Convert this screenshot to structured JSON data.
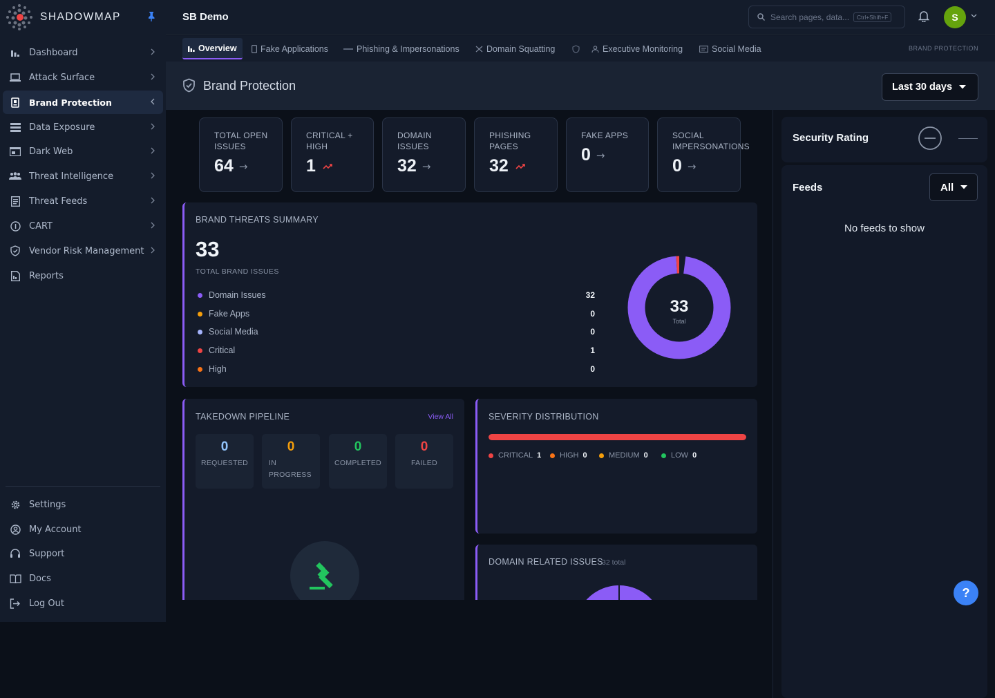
{
  "app": {
    "name": "SHADOWMAP",
    "page_header": "SB Demo"
  },
  "sidebar": {
    "items": [
      {
        "label": "Dashboard",
        "icon": "bar-chart-icon"
      },
      {
        "label": "Attack Surface",
        "icon": "laptop-icon"
      },
      {
        "label": "Brand Protection",
        "icon": "badge-icon",
        "active": true
      },
      {
        "label": "Data Exposure",
        "icon": "database-icon"
      },
      {
        "label": "Dark Web",
        "icon": "browser-icon"
      },
      {
        "label": "Threat Intelligence",
        "icon": "people-icon"
      },
      {
        "label": "Threat Feeds",
        "icon": "document-icon"
      },
      {
        "label": "CART",
        "icon": "info-icon"
      },
      {
        "label": "Vendor Risk Management",
        "icon": "shield-icon"
      },
      {
        "label": "Reports",
        "icon": "report-icon"
      }
    ],
    "bottom": [
      {
        "label": "Settings",
        "icon": "gear-icon"
      },
      {
        "label": "My Account",
        "icon": "user-circle-icon"
      },
      {
        "label": "Support",
        "icon": "headset-icon"
      },
      {
        "label": "Docs",
        "icon": "book-icon"
      },
      {
        "label": "Log Out",
        "icon": "logout-icon"
      }
    ]
  },
  "header": {
    "search_placeholder": "Search pages, data...",
    "shortcut": "Ctrl+Shift+F",
    "avatar_initial": "S"
  },
  "tabs": {
    "items": [
      {
        "label": "Overview",
        "active": true
      },
      {
        "label": "Fake Applications"
      },
      {
        "label": "Phishing & Impersonations"
      },
      {
        "label": "Domain Squatting"
      },
      {
        "label": ""
      },
      {
        "label": "Executive Monitoring"
      },
      {
        "label": "Social Media"
      }
    ],
    "section_label": "BRAND PROTECTION"
  },
  "title_row": {
    "title": "Brand Protection",
    "range": "Last 30 days"
  },
  "stats": [
    {
      "label": "TOTAL OPEN ISSUES",
      "value": "64",
      "trend": "→"
    },
    {
      "label": "CRITICAL + HIGH",
      "value": "1",
      "trend": "up"
    },
    {
      "label": "DOMAIN ISSUES",
      "value": "32",
      "trend": "→"
    },
    {
      "label": "PHISHING PAGES",
      "value": "32",
      "trend": "up"
    },
    {
      "label": "FAKE APPS",
      "value": "0",
      "trend": "→"
    },
    {
      "label": "SOCIAL IMPERSONATIONS",
      "value": "0",
      "trend": "→"
    }
  ],
  "summary": {
    "title": "BRAND THREATS SUMMARY",
    "total": "33",
    "total_label": "TOTAL BRAND ISSUES",
    "rows": [
      {
        "label": "Domain Issues",
        "value": "32",
        "color": "#8b5cf6"
      },
      {
        "label": "Fake Apps",
        "value": "0",
        "color": "#f59e0b"
      },
      {
        "label": "Social Media",
        "value": "0",
        "color": "#a5b4fc"
      },
      {
        "label": "Critical",
        "value": "1",
        "color": "#ef4444"
      },
      {
        "label": "High",
        "value": "0",
        "color": "#f97316"
      }
    ],
    "donut_total": "33",
    "donut_label": "Total"
  },
  "chart_data": [
    {
      "type": "pie",
      "title": "",
      "categories": [
        "Domain Issues",
        "Critical"
      ],
      "values": [
        32,
        1
      ],
      "colors": [
        "#8b5cf6",
        "#ef4444"
      ],
      "center_text": "33",
      "center_sub": "Total"
    }
  ],
  "takedown": {
    "title": "TAKEDOWN PIPELINE",
    "view_all": "View All",
    "stages": [
      {
        "value": "0",
        "label": "REQUESTED",
        "color": "#93c5fd"
      },
      {
        "value": "0",
        "label": "IN PROGRESS",
        "color": "#f59e0b"
      },
      {
        "value": "0",
        "label": "COMPLETED",
        "color": "#22c55e"
      },
      {
        "value": "0",
        "label": "FAILED",
        "color": "#ef4444"
      }
    ]
  },
  "severity": {
    "title": "SEVERITY DISTRIBUTION",
    "bar_fraction_critical": 1.0,
    "levels": [
      {
        "label": "CRITICAL",
        "value": "1",
        "color": "#ef4444"
      },
      {
        "label": "HIGH",
        "value": "0",
        "color": "#f97316"
      },
      {
        "label": "MEDIUM",
        "value": "0",
        "color": "#f59e0b"
      },
      {
        "label": "LOW",
        "value": "0",
        "color": "#22c55e"
      }
    ]
  },
  "domain_issues": {
    "title": "DOMAIN RELATED ISSUES",
    "count": "32 total"
  },
  "right": {
    "security_title": "Security Rating",
    "feeds_title": "Feeds",
    "feeds_filter": "All",
    "no_feeds": "No feeds to show"
  },
  "help": "?"
}
